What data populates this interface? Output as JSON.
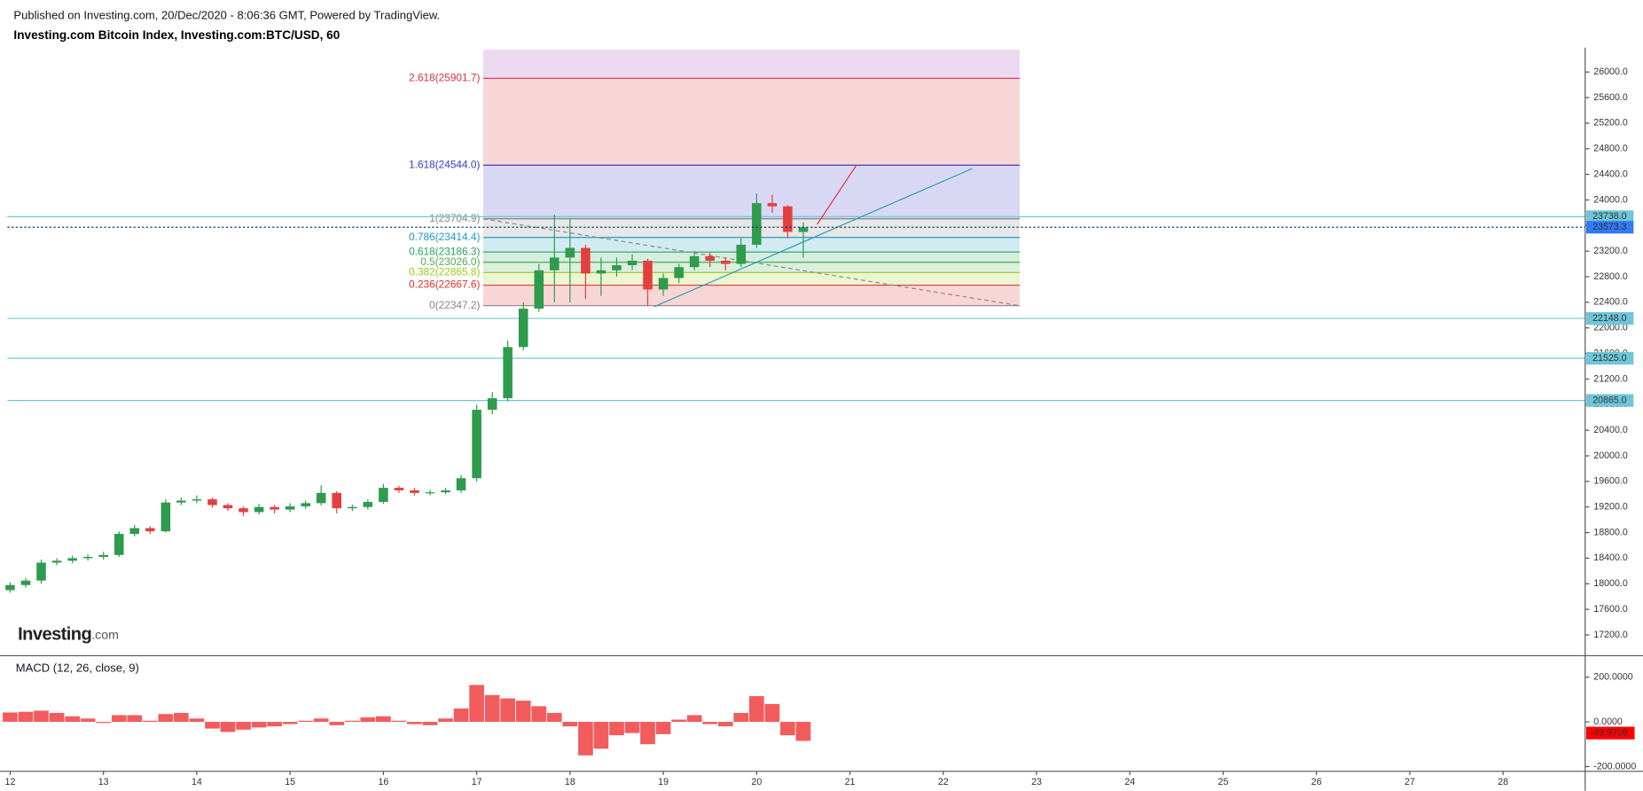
{
  "header": {
    "published": "Published on Investing.com, 20/Dec/2020 - 8:06:36 GMT, Powered by TradingView.",
    "title": "Investing.com Bitcoin Index, Investing.com:BTC/USD, 60"
  },
  "logo": {
    "brand": "Investing",
    "suffix": ".com"
  },
  "chart_data": [
    {
      "type": "candlestick",
      "x": [
        12,
        12.167,
        12.333,
        12.5,
        12.667,
        12.833,
        13,
        13.167,
        13.333,
        13.5,
        13.667,
        13.833,
        14,
        14.167,
        14.333,
        14.5,
        14.667,
        14.833,
        15,
        15.167,
        15.333,
        15.5,
        15.667,
        15.833,
        16,
        16.167,
        16.333,
        16.5,
        16.667,
        16.833,
        17,
        17.167,
        17.333,
        17.5,
        17.667,
        17.833,
        18,
        18.167,
        18.333,
        18.5,
        18.667,
        18.833,
        19,
        19.167,
        19.333,
        19.5,
        19.667,
        19.833,
        20,
        20.167,
        20.333,
        20.5
      ],
      "open": [
        17900,
        17980,
        18050,
        18330,
        18360,
        18400,
        18420,
        18450,
        18780,
        18870,
        18820,
        19270,
        19300,
        19320,
        19230,
        19180,
        19120,
        19200,
        19160,
        19210,
        19260,
        19420,
        19180,
        19200,
        19280,
        19500,
        19460,
        19420,
        19430,
        19460,
        19650,
        20720,
        20900,
        21700,
        22300,
        22900,
        23100,
        23250,
        22850,
        22900,
        22980,
        23050,
        22600,
        22780,
        22950,
        23120,
        23050,
        23000,
        23300,
        23950,
        23900,
        23500
      ],
      "high": [
        18020,
        18090,
        18380,
        18400,
        18440,
        18460,
        18500,
        18820,
        18920,
        18900,
        19320,
        19350,
        19380,
        19350,
        19260,
        19210,
        19250,
        19230,
        19260,
        19300,
        19540,
        19450,
        19240,
        19320,
        19560,
        19530,
        19500,
        19470,
        19500,
        19700,
        20800,
        21000,
        21800,
        22400,
        23000,
        23770,
        23700,
        23300,
        23100,
        23100,
        23150,
        23080,
        22850,
        23000,
        23200,
        23180,
        23100,
        23400,
        24100,
        24080,
        23920,
        23650
      ],
      "low": [
        17860,
        17940,
        18000,
        18290,
        18320,
        18360,
        18380,
        18420,
        18740,
        18780,
        18800,
        19230,
        19260,
        19190,
        19140,
        19060,
        19080,
        19100,
        19120,
        19170,
        19220,
        19100,
        19140,
        19160,
        19250,
        19420,
        19380,
        19380,
        19400,
        19420,
        19600,
        20650,
        20850,
        21650,
        22250,
        22400,
        22400,
        22450,
        22500,
        22800,
        22900,
        22350,
        22500,
        22700,
        22900,
        22950,
        22900,
        22950,
        23250,
        23800,
        23400,
        23100
      ],
      "close": [
        17980,
        18050,
        18330,
        18360,
        18400,
        18420,
        18450,
        18780,
        18870,
        18820,
        19270,
        19300,
        19320,
        19230,
        19180,
        19120,
        19200,
        19160,
        19210,
        19260,
        19420,
        19180,
        19200,
        19280,
        19500,
        19460,
        19420,
        19430,
        19460,
        19650,
        20720,
        20900,
        21700,
        22300,
        22900,
        23100,
        23250,
        22850,
        22900,
        22980,
        23050,
        22600,
        22780,
        22950,
        23120,
        23050,
        23000,
        23300,
        23950,
        23900,
        23500,
        23573
      ],
      "up_color": "#2e9b4d",
      "down_color": "#e33f3f",
      "xlim": [
        11.97,
        28.88
      ],
      "ylim": [
        16900,
        26350
      ],
      "yticks": [
        {
          "value": 17200,
          "label": "17200.0"
        },
        {
          "value": 17600,
          "label": "17600.0"
        },
        {
          "value": 18000,
          "label": "18000.0"
        },
        {
          "value": 18400,
          "label": "18400.0"
        },
        {
          "value": 18800,
          "label": "18800.0"
        },
        {
          "value": 19200,
          "label": "19200.0"
        },
        {
          "value": 19600,
          "label": "19600.0"
        },
        {
          "value": 20000,
          "label": "20000.0"
        },
        {
          "value": 20400,
          "label": "20400.0"
        },
        {
          "value": 20800,
          "label": "20800.0"
        },
        {
          "value": 21200,
          "label": "21200.0"
        },
        {
          "value": 21600,
          "label": "21600.0"
        },
        {
          "value": 22000,
          "label": "22000.0"
        },
        {
          "value": 22400,
          "label": "22400.0"
        },
        {
          "value": 22800,
          "label": "22800.0"
        },
        {
          "value": 23200,
          "label": "23200.0"
        },
        {
          "value": 23600,
          "label": "23600.0"
        },
        {
          "value": 24000,
          "label": "24000.0"
        },
        {
          "value": 24400,
          "label": "24400.0"
        },
        {
          "value": 24800,
          "label": "24800.0"
        },
        {
          "value": 25200,
          "label": "25200.0"
        },
        {
          "value": 25600,
          "label": "25600.0"
        },
        {
          "value": 26000,
          "label": "26000.0"
        }
      ],
      "fibonacci": {
        "x": [
          17.07,
          22.82
        ],
        "levels": [
          {
            "price": 22347.2,
            "label": "0(22347.2)",
            "color": "#888888"
          },
          {
            "price": 22667.6,
            "label": "0.236(22667.6)",
            "color": "#e03131"
          },
          {
            "price": 22865.8,
            "label": "0.382(22865.8)",
            "color": "#9ccc1a"
          },
          {
            "price": 23026.0,
            "label": "0.5(23026.0)",
            "color": "#4caf50"
          },
          {
            "price": 23186.3,
            "label": "0.618(23186.3)",
            "color": "#26a65b"
          },
          {
            "price": 23414.4,
            "label": "0.786(23414.4)",
            "color": "#1e9bc0"
          },
          {
            "price": 23704.9,
            "label": "1(23704.9)",
            "color": "#888888"
          },
          {
            "price": 24544.0,
            "label": "1.618(24544.0)",
            "color": "#3b3bc8"
          },
          {
            "price": 25901.7,
            "label": "2.618(25901.7)",
            "color": "#d6323c"
          }
        ]
      },
      "lines": [
        {
          "x": [
            17.07,
            22.82
          ],
          "y": [
            23704.9,
            22347.2
          ],
          "color": "#888888",
          "dash": true
        },
        {
          "x": [
            18.9,
            22.31
          ],
          "y": [
            22330,
            24490
          ],
          "color": "#2a9dab",
          "dash": false
        },
        {
          "x": [
            20.65,
            21.07
          ],
          "y": [
            23620,
            24544
          ],
          "color": "#e0304a",
          "dash": false
        }
      ],
      "price_lines": [
        {
          "value": 23738.0,
          "label": "23738.0"
        },
        {
          "value": 22148.0,
          "label": "22148.0"
        },
        {
          "value": 21525.0,
          "label": "21525.0"
        },
        {
          "value": 20865.0,
          "label": "20865.0"
        }
      ],
      "price_line_color": "#6ec6d8",
      "last_price": {
        "value": 23573.3,
        "label": "23573.3",
        "color": "#3179f5"
      }
    },
    {
      "type": "bar",
      "title": "MACD (12, 26, close, 9)",
      "x": [
        12,
        12.167,
        12.333,
        12.5,
        12.667,
        12.833,
        13,
        13.167,
        13.333,
        13.5,
        13.667,
        13.833,
        14,
        14.167,
        14.333,
        14.5,
        14.667,
        14.833,
        15,
        15.167,
        15.333,
        15.5,
        15.667,
        15.833,
        16,
        16.167,
        16.333,
        16.5,
        16.667,
        16.833,
        17,
        17.167,
        17.333,
        17.5,
        17.667,
        17.833,
        18,
        18.167,
        18.333,
        18.5,
        18.667,
        18.833,
        19,
        19.167,
        19.333,
        19.5,
        19.667,
        19.833,
        20,
        20.167,
        20.333,
        20.5
      ],
      "values": [
        42,
        45,
        50,
        40,
        25,
        15,
        -5,
        30,
        30,
        5,
        35,
        40,
        15,
        -30,
        -45,
        -35,
        -25,
        -20,
        -10,
        5,
        15,
        -15,
        5,
        20,
        25,
        5,
        -10,
        -15,
        15,
        60,
        165,
        120,
        105,
        95,
        70,
        40,
        -20,
        -150,
        -120,
        -60,
        -50,
        -100,
        -55,
        10,
        30,
        -10,
        -20,
        40,
        115,
        80,
        -60,
        -85
      ],
      "color": "#f25c5c",
      "xlim": [
        11.97,
        28.88
      ],
      "xticks": [
        12,
        13,
        14,
        15,
        16,
        17,
        18,
        19,
        20,
        21,
        22,
        23,
        24,
        25,
        26,
        27,
        28
      ],
      "ylim": [
        -219,
        289
      ],
      "yticks": [
        {
          "value": -200,
          "label": "-200.0000"
        },
        {
          "value": 0,
          "label": "0.0000"
        },
        {
          "value": 200,
          "label": "200.0000"
        }
      ],
      "last_value": {
        "value": -49.9708,
        "label": "-49.9708",
        "color": "#ff0000"
      }
    }
  ]
}
